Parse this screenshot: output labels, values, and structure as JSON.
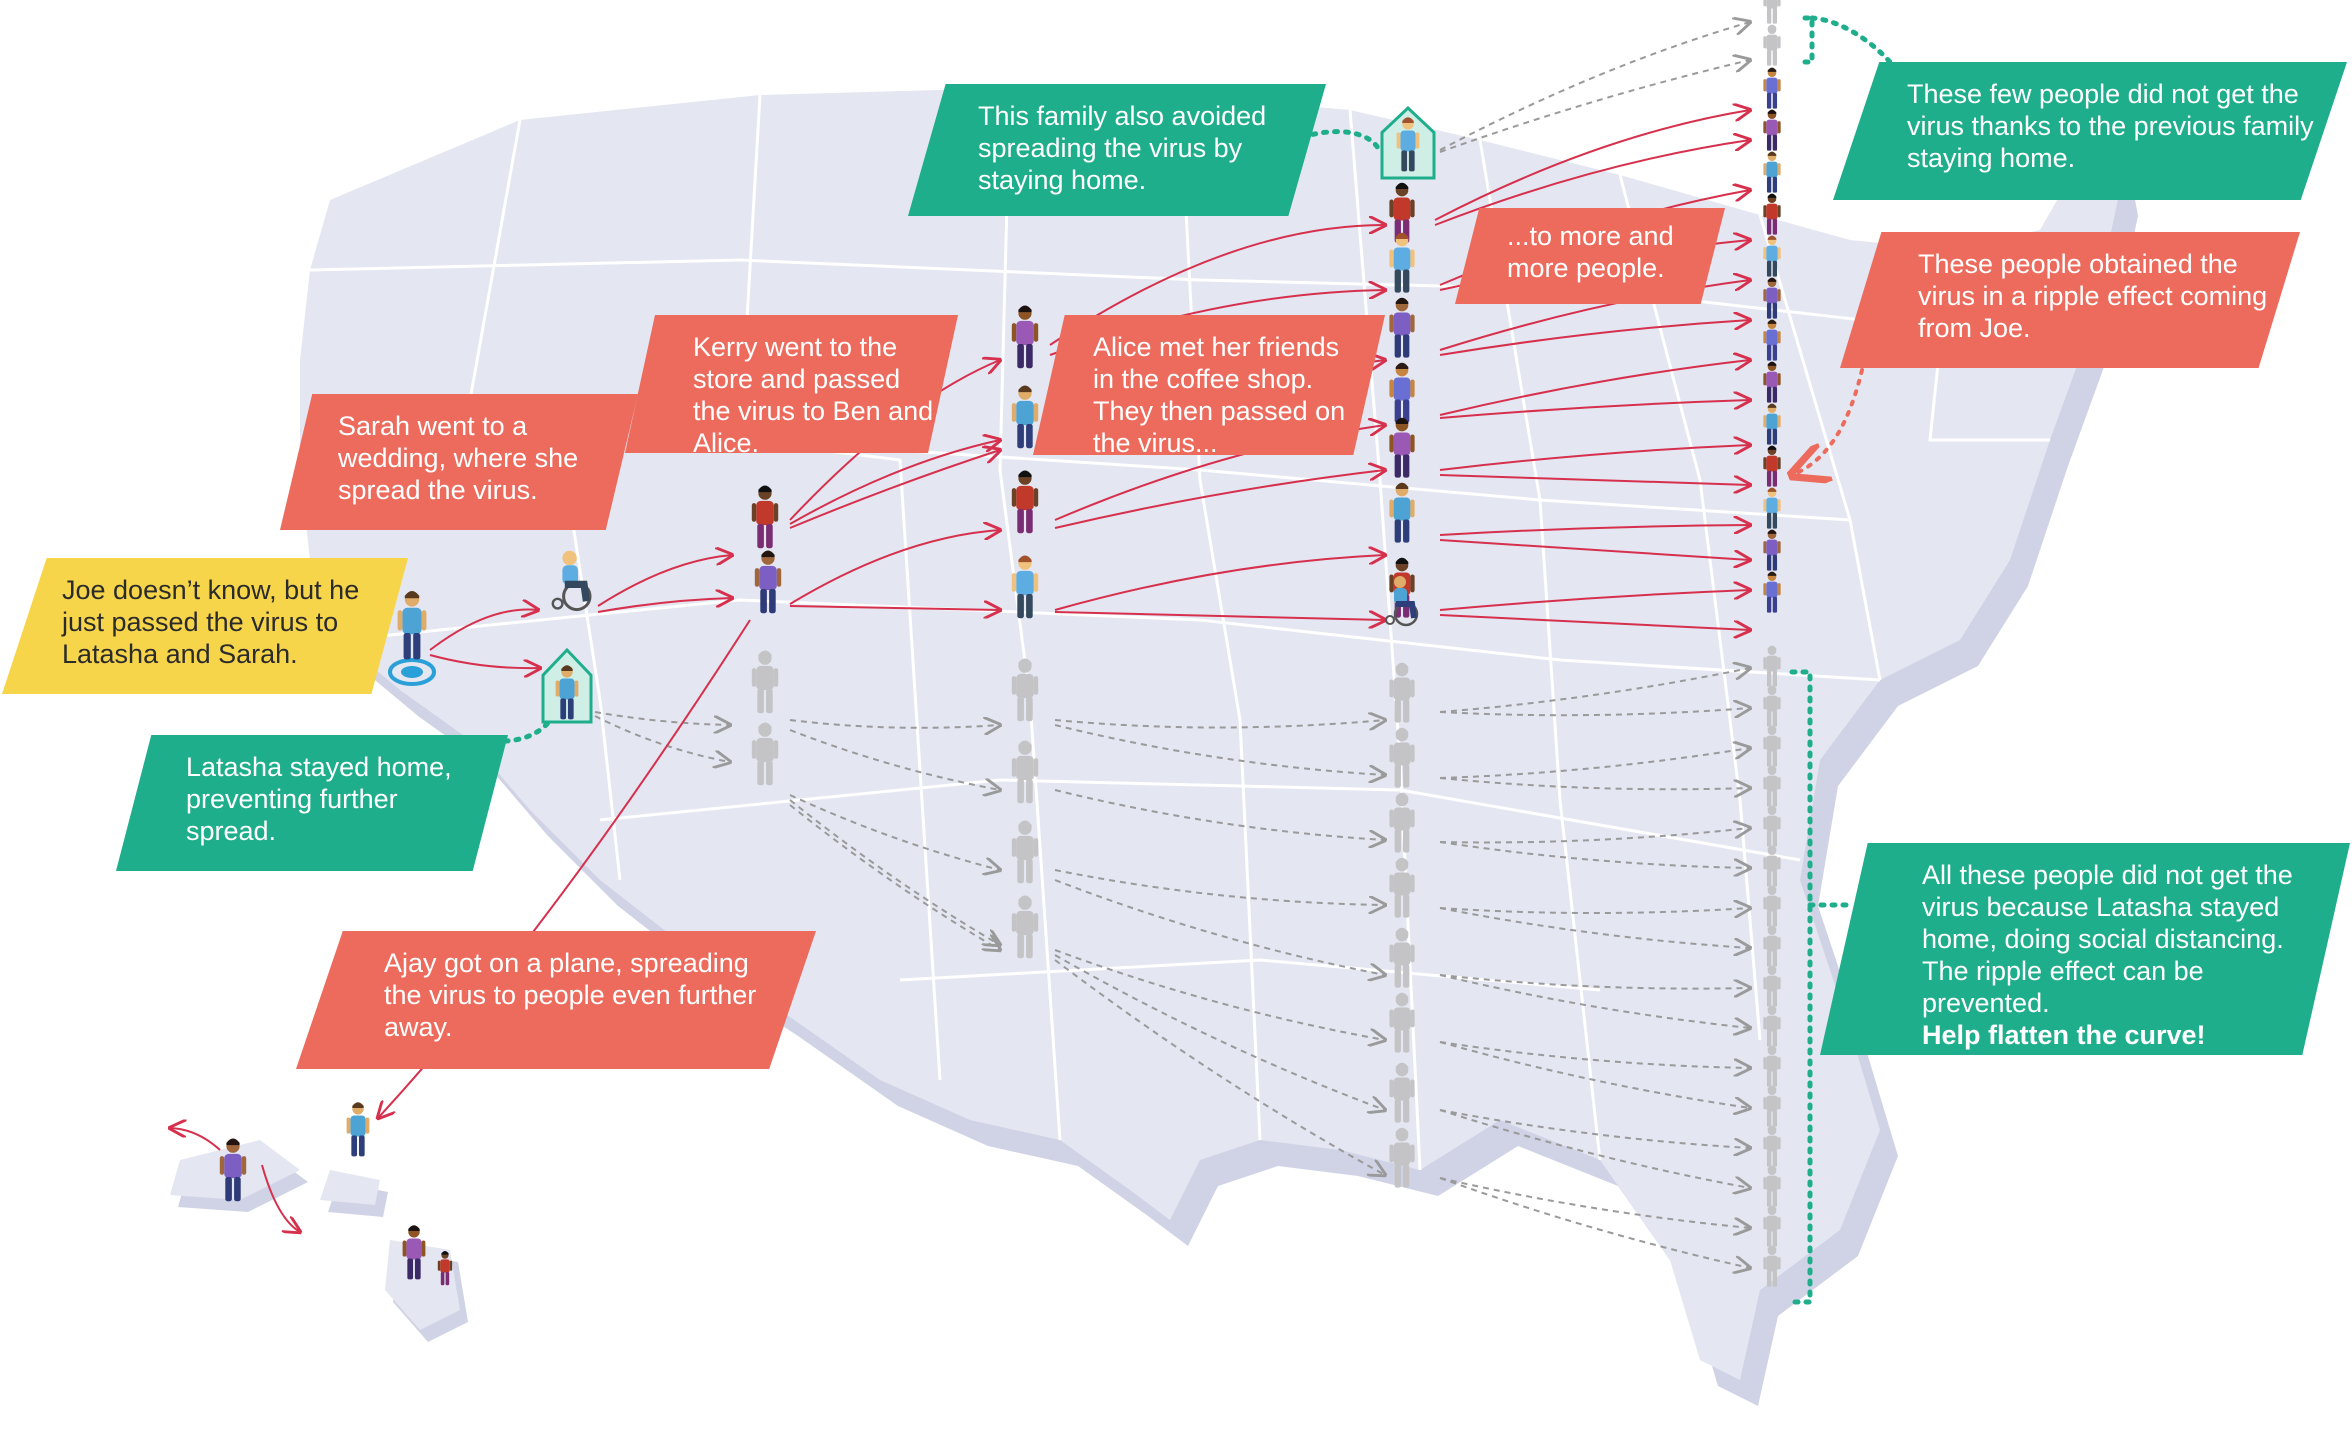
{
  "colors": {
    "map_fill": "#e4e6f1",
    "map_shadow": "#d0d3e5",
    "state_border": "#ffffff",
    "infection_arrow": "#d6304d",
    "avoided_arrow": "#9a9a9a",
    "stay_home_green": "#1fae8c",
    "callout_coral": "#ec6b5d",
    "callout_yellow": "#f7d54b",
    "ripple_dotted": "#ec6b5d",
    "gray_person": "#c4c4c6"
  },
  "icons": {
    "house": "house-icon",
    "person": "person-icon",
    "wheelchair": "wheelchair-icon",
    "target": "target-ring-icon"
  },
  "callouts": {
    "joe": {
      "text": "Joe doesn’t know, but he just passed the virus to Latasha and Sarah."
    },
    "sarah": {
      "text": "Sarah went to a wedding, where she spread the virus."
    },
    "latasha": {
      "text": "Latasha stayed home, preventing further spread."
    },
    "kerry": {
      "text": "Kerry went to the store and passed the virus to Ben and Alice."
    },
    "family": {
      "text": "This family also avoided spreading the virus by staying home."
    },
    "alice": {
      "text": "Alice met her friends in the coffee shop. They then passed on the virus..."
    },
    "more": {
      "text": "...to more and more people."
    },
    "few_people": {
      "text": "These few people did not get the virus thanks to the previous family staying home."
    },
    "ripple": {
      "text": "These people obtained the virus in a ripple effect coming from Joe."
    },
    "ajay": {
      "text": "Ajay got on a plane, spreading the virus to people even further away."
    },
    "all_these": {
      "text": "All these people did not get the virus because Latasha stayed home, doing social distancing. The ripple effect can be prevented.",
      "emphasis": "Help flatten the curve!"
    }
  }
}
